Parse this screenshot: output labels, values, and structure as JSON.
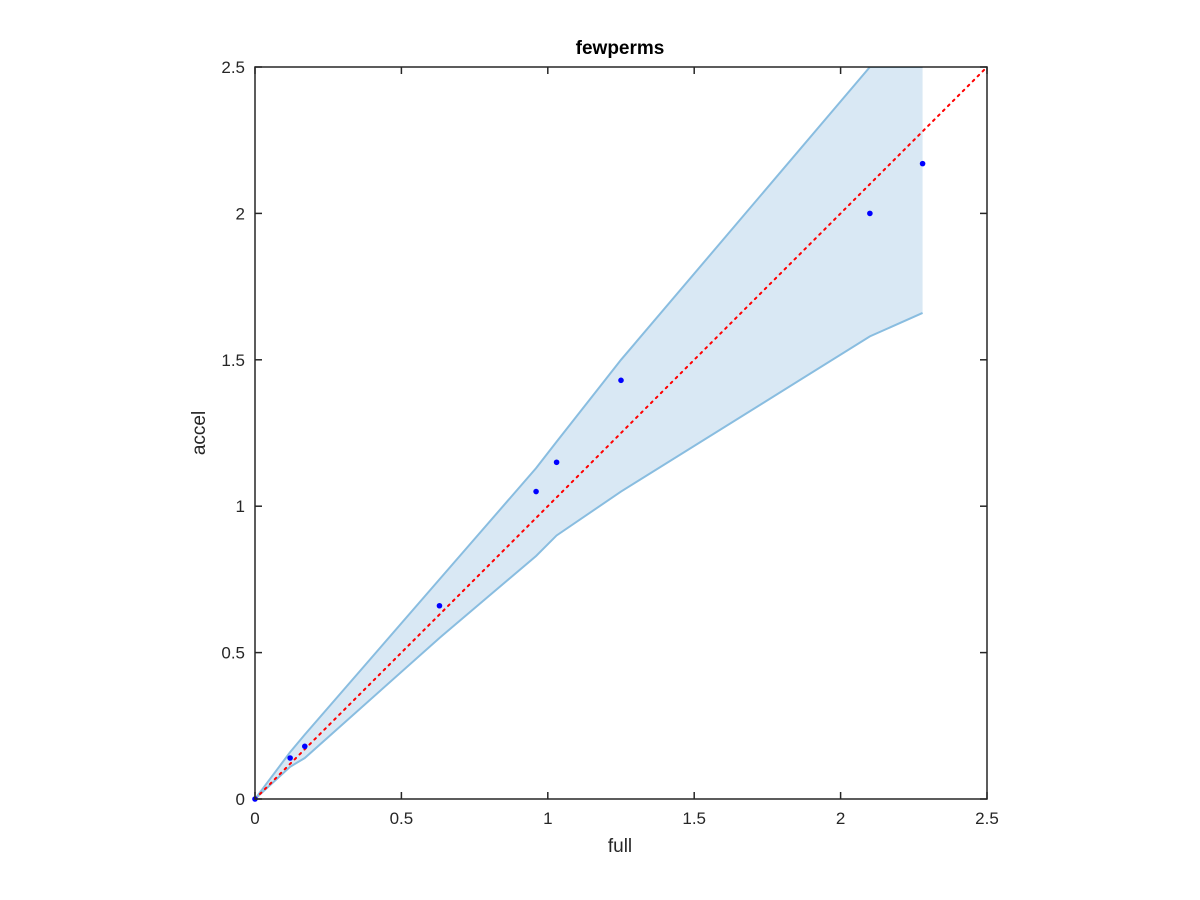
{
  "chart_data": {
    "type": "scatter",
    "title": "fewperms",
    "xlabel": "full",
    "ylabel": "accel",
    "xlim": [
      0,
      2.5
    ],
    "ylim": [
      0,
      2.5
    ],
    "xticks": [
      0,
      0.5,
      1,
      1.5,
      2,
      2.5
    ],
    "yticks": [
      0,
      0.5,
      1,
      1.5,
      2,
      2.5
    ],
    "xtick_labels": [
      "0",
      "0.5",
      "1",
      "1.5",
      "2",
      "2.5"
    ],
    "ytick_labels": [
      "0",
      "0.5",
      "1",
      "1.5",
      "2",
      "2.5"
    ],
    "grid": false,
    "points": {
      "x": [
        0,
        0.12,
        0.17,
        0.63,
        0.96,
        1.03,
        1.25,
        2.1,
        2.28
      ],
      "y": [
        0,
        0.14,
        0.18,
        0.66,
        1.05,
        1.15,
        1.43,
        2.0,
        2.17
      ],
      "color": "#0000ff"
    },
    "band": {
      "x": [
        0,
        0.12,
        0.17,
        0.63,
        0.96,
        1.03,
        1.25,
        2.1,
        2.28
      ],
      "upper": [
        0,
        0.16,
        0.22,
        0.75,
        1.13,
        1.22,
        1.5,
        2.5,
        2.5
      ],
      "lower": [
        0,
        0.11,
        0.14,
        0.55,
        0.83,
        0.9,
        1.05,
        1.58,
        1.66
      ],
      "fill": "#d9e8f4",
      "edge": "#89bde0"
    },
    "reference_line": {
      "x": [
        0,
        2.5
      ],
      "y": [
        0,
        2.5
      ],
      "color": "#ff0000",
      "style": "dotted"
    }
  }
}
